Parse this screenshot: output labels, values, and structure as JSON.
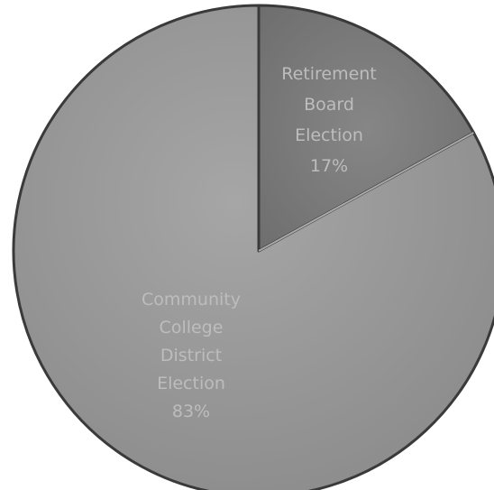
{
  "chart_data": {
    "type": "pie",
    "start_angle_deg": 0,
    "direction": "clockwise",
    "slices": [
      {
        "name": "Retirement Board Election",
        "label_lines": [
          "Retirement",
          "Board",
          "Election"
        ],
        "percent_label": "17%",
        "value": 17
      },
      {
        "name": "Community College District Election",
        "label_lines": [
          "Community",
          "College",
          "District",
          "Election"
        ],
        "percent_label": "83%",
        "value": 83
      }
    ],
    "legend": "none",
    "colors": {
      "small_slice": "#7d7d7d",
      "large_slice": "#9b9b9b",
      "edge": "#3a3a3a",
      "label": "#bdbdbd"
    }
  }
}
